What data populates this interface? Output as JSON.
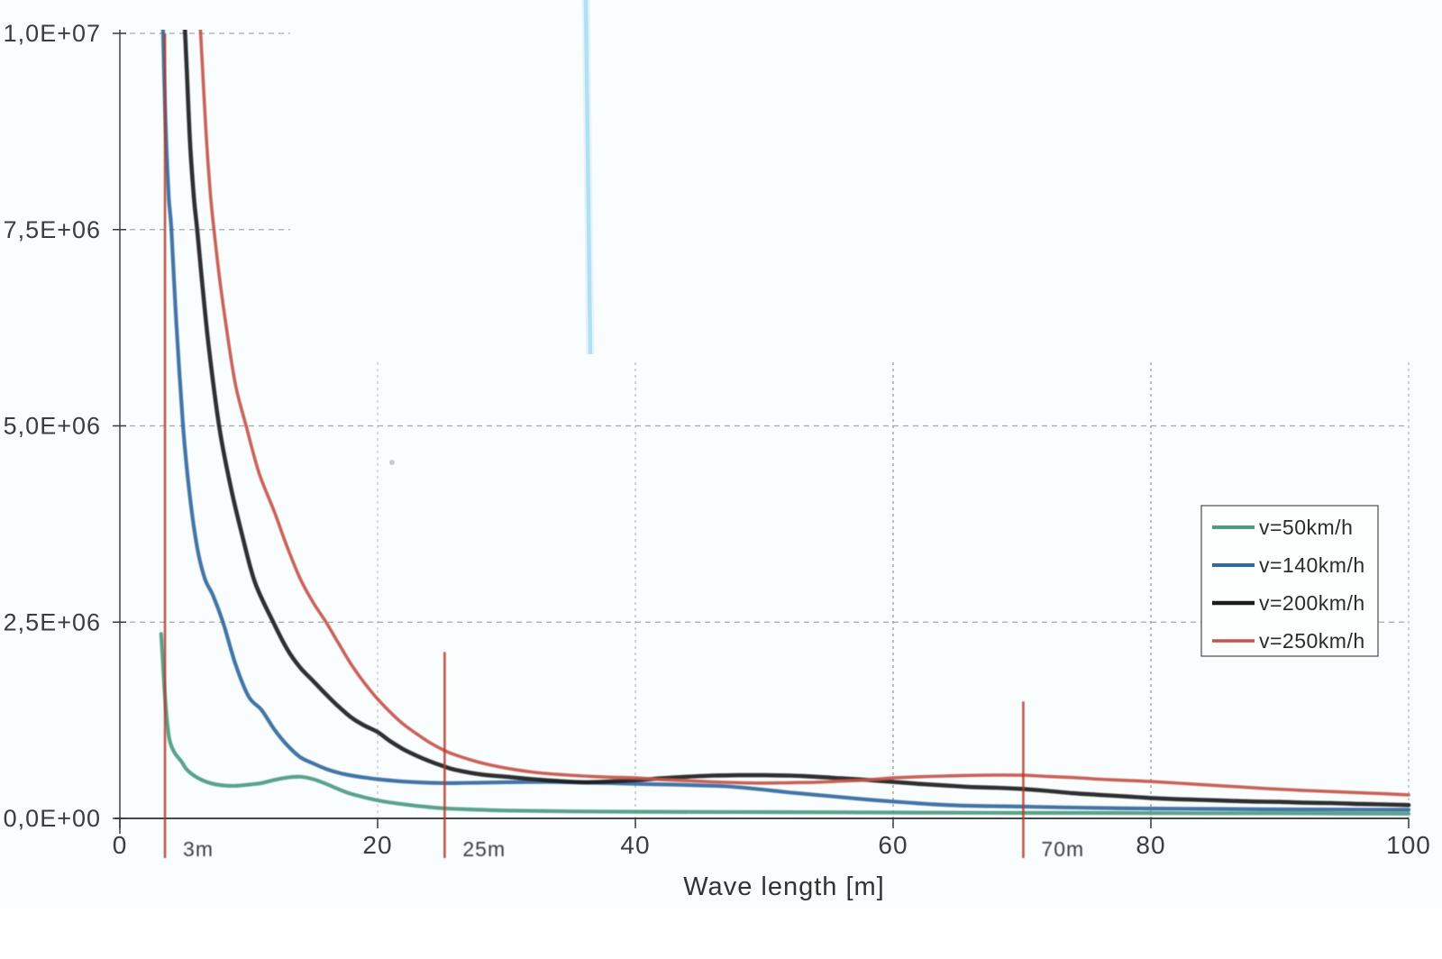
{
  "page": {
    "background": "#f9fdfd",
    "bottom_margin_color": "#ffffff"
  },
  "chart_data": {
    "type": "line",
    "title": "",
    "xlabel": "Wave length [m]",
    "ylabel": "",
    "xlim": [
      0,
      100
    ],
    "ylim": [
      0,
      10000000
    ],
    "x_ticks": [
      0,
      20,
      40,
      60,
      80,
      100
    ],
    "y_ticks": [
      {
        "value": 0,
        "label": "0,0E+00"
      },
      {
        "value": 2500000,
        "label": "2,5E+06"
      },
      {
        "value": 5000000,
        "label": "5,0E+06"
      },
      {
        "value": 7500000,
        "label": "7,5E+06"
      },
      {
        "value": 10000000,
        "label": "1,0E+07"
      }
    ],
    "grid": "dashed",
    "legend_position": "right-middle",
    "axis_color": "#3a3a3a",
    "grid_color": "#8c8c8c",
    "series": [
      {
        "name": "v=50km/h",
        "color": "#4d9b80",
        "points": [
          [
            3.2,
            2350000
          ],
          [
            3.3,
            2100000
          ],
          [
            3.5,
            1550000
          ],
          [
            3.8,
            1050000
          ],
          [
            4.2,
            850000
          ],
          [
            4.8,
            720000
          ],
          [
            5.2,
            620000
          ],
          [
            6,
            520000
          ],
          [
            7,
            450000
          ],
          [
            8,
            420000
          ],
          [
            9,
            415000
          ],
          [
            10,
            430000
          ],
          [
            11,
            450000
          ],
          [
            12,
            490000
          ],
          [
            13,
            520000
          ],
          [
            14,
            530000
          ],
          [
            15,
            500000
          ],
          [
            16,
            440000
          ],
          [
            17,
            370000
          ],
          [
            18,
            310000
          ],
          [
            20,
            230000
          ],
          [
            22,
            180000
          ],
          [
            25,
            130000
          ],
          [
            28,
            110000
          ],
          [
            30,
            100000
          ],
          [
            35,
            90000
          ],
          [
            40,
            85000
          ],
          [
            45,
            82000
          ],
          [
            50,
            80000
          ],
          [
            55,
            78000
          ],
          [
            60,
            75000
          ],
          [
            65,
            72000
          ],
          [
            70,
            70000
          ],
          [
            75,
            70000
          ],
          [
            80,
            68000
          ],
          [
            85,
            66000
          ],
          [
            90,
            65000
          ],
          [
            95,
            62000
          ],
          [
            100,
            60000
          ]
        ]
      },
      {
        "name": "v=140km/h",
        "color": "#33689e",
        "points": [
          [
            3.35,
            10050000
          ],
          [
            3.45,
            9400000
          ],
          [
            3.6,
            8600000
          ],
          [
            3.8,
            7900000
          ],
          [
            4,
            7500000
          ],
          [
            4.35,
            6400000
          ],
          [
            4.9,
            5000000
          ],
          [
            5.4,
            4150000
          ],
          [
            6,
            3450000
          ],
          [
            6.6,
            3050000
          ],
          [
            7.2,
            2850000
          ],
          [
            8,
            2500000
          ],
          [
            9,
            1950000
          ],
          [
            10,
            1550000
          ],
          [
            11,
            1380000
          ],
          [
            12,
            1130000
          ],
          [
            13,
            930000
          ],
          [
            14,
            780000
          ],
          [
            15,
            700000
          ],
          [
            16,
            630000
          ],
          [
            17,
            580000
          ],
          [
            18,
            545000
          ],
          [
            19,
            520000
          ],
          [
            20,
            500000
          ],
          [
            22,
            470000
          ],
          [
            25,
            450000
          ],
          [
            28,
            455000
          ],
          [
            30,
            460000
          ],
          [
            33,
            465000
          ],
          [
            35,
            460000
          ],
          [
            38,
            450000
          ],
          [
            40,
            440000
          ],
          [
            43,
            430000
          ],
          [
            45,
            420000
          ],
          [
            47,
            410000
          ],
          [
            50,
            365000
          ],
          [
            52,
            330000
          ],
          [
            55,
            285000
          ],
          [
            58,
            240000
          ],
          [
            60,
            215000
          ],
          [
            63,
            180000
          ],
          [
            65,
            165000
          ],
          [
            68,
            155000
          ],
          [
            70,
            150000
          ],
          [
            75,
            135000
          ],
          [
            80,
            125000
          ],
          [
            85,
            120000
          ],
          [
            90,
            115000
          ],
          [
            95,
            112000
          ],
          [
            100,
            110000
          ]
        ]
      },
      {
        "name": "v=200km/h",
        "color": "#1c1c1c",
        "points": [
          [
            5.05,
            10050000
          ],
          [
            5.2,
            9500000
          ],
          [
            5.45,
            8600000
          ],
          [
            5.75,
            7900000
          ],
          [
            6,
            7500000
          ],
          [
            6.4,
            6800000
          ],
          [
            6.9,
            6000000
          ],
          [
            7.7,
            5000000
          ],
          [
            8.5,
            4300000
          ],
          [
            9.5,
            3600000
          ],
          [
            10.5,
            3000000
          ],
          [
            11.9,
            2500000
          ],
          [
            13,
            2150000
          ],
          [
            14,
            1920000
          ],
          [
            15,
            1750000
          ],
          [
            16,
            1580000
          ],
          [
            17,
            1420000
          ],
          [
            18,
            1280000
          ],
          [
            19,
            1180000
          ],
          [
            20,
            1100000
          ],
          [
            21,
            980000
          ],
          [
            22,
            880000
          ],
          [
            23,
            800000
          ],
          [
            24,
            730000
          ],
          [
            25,
            670000
          ],
          [
            26,
            620000
          ],
          [
            28,
            560000
          ],
          [
            30,
            530000
          ],
          [
            32,
            500000
          ],
          [
            34,
            475000
          ],
          [
            36,
            460000
          ],
          [
            38,
            470000
          ],
          [
            40,
            485000
          ],
          [
            42,
            510000
          ],
          [
            44,
            530000
          ],
          [
            46,
            545000
          ],
          [
            48,
            550000
          ],
          [
            50,
            550000
          ],
          [
            52,
            545000
          ],
          [
            54,
            530000
          ],
          [
            56,
            510000
          ],
          [
            58,
            490000
          ],
          [
            60,
            465000
          ],
          [
            62,
            440000
          ],
          [
            64,
            420000
          ],
          [
            66,
            400000
          ],
          [
            68,
            390000
          ],
          [
            70,
            375000
          ],
          [
            72,
            350000
          ],
          [
            74,
            320000
          ],
          [
            76,
            300000
          ],
          [
            78,
            280000
          ],
          [
            80,
            260000
          ],
          [
            82,
            245000
          ],
          [
            84,
            235000
          ],
          [
            86,
            225000
          ],
          [
            88,
            215000
          ],
          [
            90,
            210000
          ],
          [
            92,
            200000
          ],
          [
            94,
            195000
          ],
          [
            96,
            185000
          ],
          [
            98,
            178000
          ],
          [
            100,
            170000
          ]
        ]
      },
      {
        "name": "v=250km/h",
        "color": "#c4554a",
        "points": [
          [
            6.25,
            10050000
          ],
          [
            6.4,
            9600000
          ],
          [
            6.7,
            8700000
          ],
          [
            7,
            8000000
          ],
          [
            7.3,
            7500000
          ],
          [
            7.8,
            6800000
          ],
          [
            8.4,
            6100000
          ],
          [
            9,
            5500000
          ],
          [
            9.8,
            5000000
          ],
          [
            10.8,
            4400000
          ],
          [
            12,
            3900000
          ],
          [
            13,
            3450000
          ],
          [
            14,
            3050000
          ],
          [
            15,
            2750000
          ],
          [
            16,
            2500000
          ],
          [
            17,
            2220000
          ],
          [
            18,
            1950000
          ],
          [
            19,
            1720000
          ],
          [
            20,
            1520000
          ],
          [
            21,
            1350000
          ],
          [
            22,
            1200000
          ],
          [
            23,
            1080000
          ],
          [
            24,
            970000
          ],
          [
            25,
            880000
          ],
          [
            26,
            810000
          ],
          [
            28,
            710000
          ],
          [
            30,
            640000
          ],
          [
            32,
            590000
          ],
          [
            34,
            560000
          ],
          [
            36,
            540000
          ],
          [
            38,
            525000
          ],
          [
            40,
            515000
          ],
          [
            42,
            495000
          ],
          [
            44,
            480000
          ],
          [
            46,
            465000
          ],
          [
            48,
            455000
          ],
          [
            50,
            450000
          ],
          [
            52,
            455000
          ],
          [
            54,
            460000
          ],
          [
            56,
            475000
          ],
          [
            58,
            490000
          ],
          [
            60,
            515000
          ],
          [
            62,
            530000
          ],
          [
            64,
            540000
          ],
          [
            66,
            548000
          ],
          [
            68,
            552000
          ],
          [
            70,
            550000
          ],
          [
            72,
            535000
          ],
          [
            74,
            520000
          ],
          [
            76,
            500000
          ],
          [
            78,
            485000
          ],
          [
            80,
            470000
          ],
          [
            83,
            440000
          ],
          [
            86,
            410000
          ],
          [
            89,
            380000
          ],
          [
            92,
            355000
          ],
          [
            95,
            335000
          ],
          [
            98,
            315000
          ],
          [
            100,
            300000
          ]
        ]
      }
    ],
    "markers": [
      {
        "label": "3m",
        "x": 3.5,
        "top": 10000000
      },
      {
        "label": "25m",
        "x": 25.2,
        "top": 2120000
      },
      {
        "label": "70m",
        "x": 70.1,
        "top": 1490000
      }
    ],
    "marker_line_color": "#b5392c",
    "marker_label_color": "#df9288",
    "scan_artifact": {
      "name": "cyan-vertical-streak",
      "color": "#a9ddf4"
    }
  }
}
